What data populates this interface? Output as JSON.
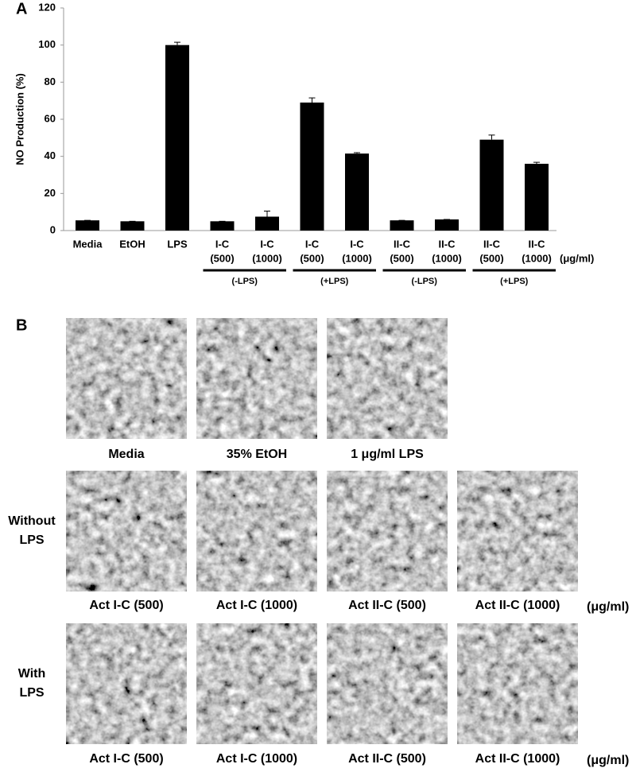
{
  "chart_data": {
    "type": "bar",
    "panel_label": "A",
    "y_label": "NO Production (%)",
    "categories": [
      [
        "Media"
      ],
      [
        "EtOH"
      ],
      [
        "LPS"
      ],
      [
        "I-C",
        "(500)"
      ],
      [
        "I-C",
        "(1000)"
      ],
      [
        "I-C",
        "(500)"
      ],
      [
        "I-C",
        "(1000)"
      ],
      [
        "II-C",
        "(500)"
      ],
      [
        "II-C",
        "(1000)"
      ],
      [
        "II-C",
        "(500)"
      ],
      [
        "II-C",
        "(1000)"
      ]
    ],
    "values": [
      5.5,
      5,
      100,
      5,
      7.5,
      69,
      41.5,
      5.5,
      6,
      49,
      36
    ],
    "errors": [
      0,
      0,
      1.5,
      0,
      3,
      2.5,
      0.5,
      0,
      0,
      2.5,
      0.8
    ],
    "color": "#000000",
    "ylim": [
      0,
      120
    ],
    "yticks": [
      0,
      20,
      40,
      60,
      80,
      100,
      120
    ],
    "unit_label": "(μg/ml)",
    "groups": [
      {
        "label": "(-LPS)",
        "span": [
          3,
          4
        ]
      },
      {
        "label": "(+LPS)",
        "span": [
          5,
          6
        ]
      },
      {
        "label": "(-LPS)",
        "span": [
          7,
          8
        ]
      },
      {
        "label": "(+LPS)",
        "span": [
          9,
          10
        ]
      }
    ]
  },
  "panel_b": {
    "label": "B",
    "rows": [
      {
        "captions": [
          "Media",
          "35% EtOH",
          "1 μg/ml LPS"
        ]
      },
      {
        "label": [
          "Without",
          "LPS"
        ],
        "captions": [
          "Act I-C (500)",
          "Act I-C (1000)",
          "Act II-C (500)",
          "Act II-C (1000)"
        ],
        "unit": "(μg/ml)"
      },
      {
        "label": [
          "With",
          "LPS"
        ],
        "captions": [
          "Act I-C (500)",
          "Act I-C (1000)",
          "Act II-C (500)",
          "Act II-C (1000)"
        ],
        "unit": "(μg/ml)"
      }
    ]
  }
}
